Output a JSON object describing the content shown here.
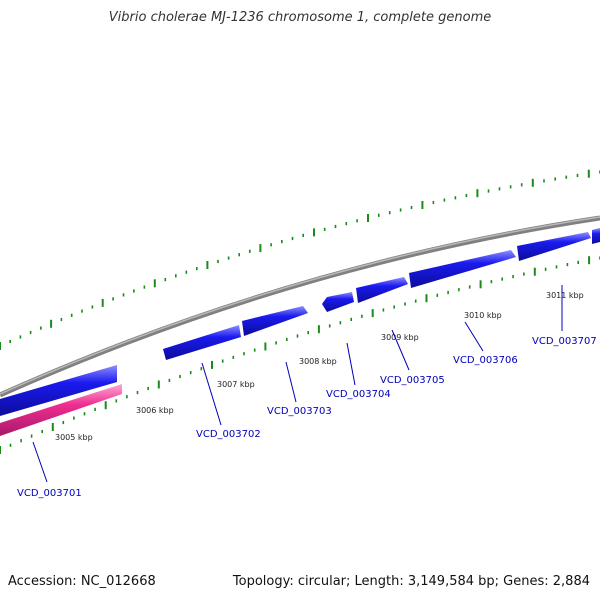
{
  "title": "Vibrio cholerae MJ-1236 chromosome 1, complete genome",
  "footer": {
    "accession": "Accession: NC_012668",
    "summary": "Topology: circular; Length: 3,149,584 bp; Genes: 2,884"
  },
  "colors": {
    "backbone": "#8a8a8a",
    "gene_forward": "#1a1aee",
    "gene_other": "#ee2d8f",
    "tick": "#1a8a1a",
    "label": "#0000bb"
  },
  "scale_labels": [
    "3005 kbp",
    "3006 kbp",
    "3007 kbp",
    "3008 kbp",
    "3009 kbp",
    "3010 kbp",
    "3011 kbp"
  ],
  "genes": [
    {
      "label": "VCD_003701"
    },
    {
      "label": "VCD_003702"
    },
    {
      "label": "VCD_003703"
    },
    {
      "label": "VCD_003704"
    },
    {
      "label": "VCD_003705"
    },
    {
      "label": "VCD_003706"
    },
    {
      "label": "VCD_003707"
    }
  ]
}
